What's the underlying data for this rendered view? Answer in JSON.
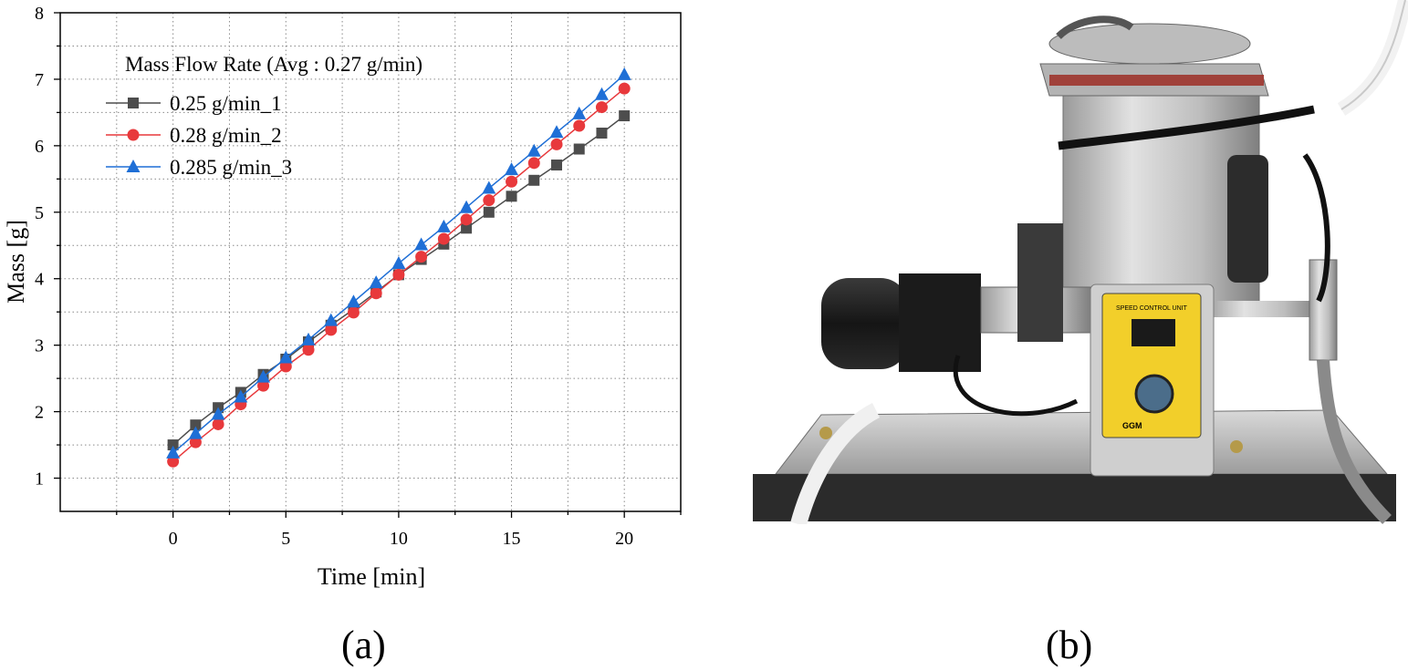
{
  "panels": {
    "a_label": "(a)",
    "b_label": "(b)"
  },
  "chart_data": {
    "type": "line",
    "title": "",
    "legend_title": "Mass Flow Rate (Avg : 0.27 g/min)",
    "legend_position": "top-left",
    "xlabel": "Time [min]",
    "ylabel": "Mass [g]",
    "xlim": [
      -5,
      22.5
    ],
    "ylim": [
      0.5,
      8
    ],
    "xticks": [
      0,
      5,
      10,
      15,
      20
    ],
    "yticks": [
      1,
      2,
      3,
      4,
      5,
      6,
      7,
      8
    ],
    "grid": true,
    "x": [
      0,
      1,
      2,
      3,
      4,
      5,
      6,
      7,
      8,
      9,
      10,
      11,
      12,
      13,
      14,
      15,
      16,
      17,
      18,
      19,
      20
    ],
    "series": [
      {
        "name": "0.25 g/min_1",
        "color": "#4d4d4d",
        "marker": "square",
        "values": [
          1.5,
          1.8,
          2.06,
          2.29,
          2.56,
          2.79,
          3.05,
          3.3,
          3.54,
          3.8,
          4.06,
          4.29,
          4.52,
          4.76,
          5.0,
          5.24,
          5.48,
          5.71,
          5.95,
          6.19,
          6.45
        ]
      },
      {
        "name": "0.28 g/min_2",
        "color": "#e8393c",
        "marker": "circle",
        "values": [
          1.25,
          1.54,
          1.81,
          2.11,
          2.39,
          2.68,
          2.93,
          3.23,
          3.49,
          3.78,
          4.06,
          4.33,
          4.6,
          4.89,
          5.18,
          5.46,
          5.74,
          6.02,
          6.3,
          6.58,
          6.86
        ]
      },
      {
        "name": "0.285 g/min_3",
        "color": "#1f6fd6",
        "marker": "triangle",
        "values": [
          1.38,
          1.67,
          1.96,
          2.22,
          2.52,
          2.81,
          3.08,
          3.37,
          3.65,
          3.94,
          4.23,
          4.51,
          4.78,
          5.07,
          5.36,
          5.64,
          5.92,
          6.2,
          6.48,
          6.77,
          7.07
        ]
      }
    ]
  },
  "photo": {
    "subject": "mass flow feeder device",
    "control_unit_brand": "GGM",
    "control_unit_label": "SPEED CONTROL UNIT"
  }
}
